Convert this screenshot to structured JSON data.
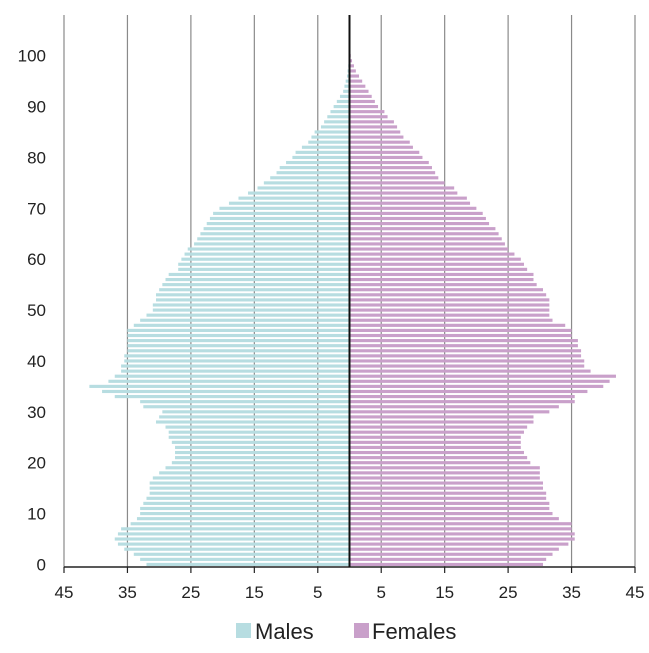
{
  "chart_data": {
    "type": "bar",
    "orientation": "horizontal-pyramid",
    "title": "",
    "xlabel": "",
    "ylabel": "",
    "x_ticks": [
      "45",
      "35",
      "25",
      "15",
      "5",
      "5",
      "15",
      "25",
      "35",
      "45"
    ],
    "y_ticks": [
      "0",
      "10",
      "20",
      "30",
      "40",
      "50",
      "60",
      "70",
      "80",
      "90",
      "100"
    ],
    "xlim": [
      -45,
      45
    ],
    "ylim": [
      0,
      100
    ],
    "grid": "vertical",
    "legend_position": "bottom",
    "ages": [
      0,
      1,
      2,
      3,
      4,
      5,
      6,
      7,
      8,
      9,
      10,
      11,
      12,
      13,
      14,
      15,
      16,
      17,
      18,
      19,
      20,
      21,
      22,
      23,
      24,
      25,
      26,
      27,
      28,
      29,
      30,
      31,
      32,
      33,
      34,
      35,
      36,
      37,
      38,
      39,
      40,
      41,
      42,
      43,
      44,
      45,
      46,
      47,
      48,
      49,
      50,
      51,
      52,
      53,
      54,
      55,
      56,
      57,
      58,
      59,
      60,
      61,
      62,
      63,
      64,
      65,
      66,
      67,
      68,
      69,
      70,
      71,
      72,
      73,
      74,
      75,
      76,
      77,
      78,
      79,
      80,
      81,
      82,
      83,
      84,
      85,
      86,
      87,
      88,
      89,
      90,
      91,
      92,
      93,
      94,
      95,
      96,
      97,
      98,
      99,
      100
    ],
    "series": [
      {
        "name": "Males",
        "color": "#b7dde1",
        "values": [
          32.0,
          33.0,
          34.0,
          35.5,
          36.5,
          37.0,
          36.5,
          36.0,
          34.5,
          33.5,
          33.0,
          33.0,
          32.5,
          32.0,
          31.5,
          31.5,
          31.5,
          31.0,
          30.0,
          29.0,
          28.0,
          27.5,
          27.5,
          27.5,
          28.0,
          28.5,
          28.5,
          29.0,
          30.5,
          30.0,
          29.5,
          32.5,
          33.0,
          37.0,
          39.0,
          41.0,
          38.0,
          37.0,
          36.0,
          36.0,
          35.5,
          35.5,
          35.0,
          35.0,
          35.0,
          35.0,
          35.0,
          34.0,
          33.0,
          32.0,
          31.0,
          31.0,
          30.5,
          30.5,
          30.0,
          29.5,
          29.0,
          28.5,
          27.0,
          27.0,
          26.5,
          26.0,
          25.5,
          24.5,
          24.0,
          23.5,
          23.0,
          22.5,
          22.0,
          21.5,
          20.5,
          19.0,
          17.5,
          16.0,
          14.5,
          13.5,
          12.5,
          11.5,
          11.0,
          10.0,
          9.0,
          8.5,
          7.5,
          6.5,
          6.0,
          5.5,
          4.5,
          4.0,
          3.5,
          3.0,
          2.5,
          2.0,
          1.5,
          1.0,
          0.8,
          0.6,
          0.4,
          0.3,
          0.2,
          0.1,
          0.05
        ]
      },
      {
        "name": "Females",
        "color": "#c9a0ca",
        "values": [
          30.5,
          31.0,
          32.0,
          33.0,
          34.5,
          35.5,
          35.5,
          35.0,
          35.0,
          33.0,
          32.0,
          31.5,
          31.5,
          31.0,
          31.0,
          30.5,
          30.5,
          30.0,
          30.0,
          30.0,
          28.5,
          28.0,
          27.5,
          27.0,
          27.0,
          27.0,
          27.5,
          28.0,
          29.0,
          29.0,
          31.5,
          33.0,
          35.5,
          35.5,
          37.5,
          40.0,
          41.0,
          42.0,
          38.0,
          37.0,
          37.0,
          36.5,
          36.5,
          36.0,
          36.0,
          35.0,
          35.0,
          34.0,
          32.0,
          31.5,
          31.5,
          31.5,
          31.5,
          31.0,
          30.5,
          29.5,
          29.0,
          29.0,
          28.0,
          27.5,
          27.0,
          26.0,
          25.0,
          24.5,
          24.0,
          23.5,
          23.0,
          22.0,
          21.5,
          21.0,
          20.0,
          19.0,
          18.5,
          17.0,
          16.5,
          15.0,
          14.0,
          13.5,
          13.0,
          12.5,
          11.5,
          11.0,
          10.0,
          9.5,
          8.5,
          8.0,
          7.5,
          7.0,
          6.0,
          5.5,
          4.5,
          4.0,
          3.5,
          3.0,
          2.5,
          2.0,
          1.5,
          1.0,
          0.7,
          0.4,
          0.2
        ]
      }
    ]
  }
}
